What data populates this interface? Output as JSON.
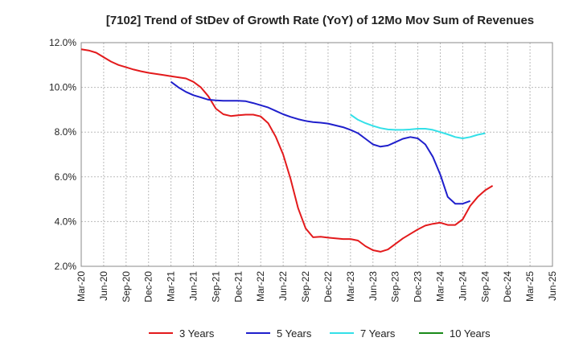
{
  "chart_data": {
    "type": "line",
    "title": "[7102]  Trend of StDev of Growth Rate (YoY) of 12Mo Mov Sum of Revenues",
    "xlabel": "",
    "ylabel": "",
    "ylim": [
      2.0,
      12.0
    ],
    "y_ticks": [
      "2.0%",
      "4.0%",
      "6.0%",
      "8.0%",
      "10.0%",
      "12.0%"
    ],
    "x_ticks": [
      "Mar-20",
      "Jun-20",
      "Sep-20",
      "Dec-20",
      "Mar-21",
      "Jun-21",
      "Sep-21",
      "Dec-21",
      "Mar-22",
      "Jun-22",
      "Sep-22",
      "Dec-22",
      "Mar-23",
      "Jun-23",
      "Sep-23",
      "Dec-23",
      "Mar-24",
      "Jun-24",
      "Sep-24",
      "Dec-24",
      "Mar-25",
      "Jun-25"
    ],
    "grid": true,
    "legend_position": "bottom",
    "series": [
      {
        "name": "3 Years",
        "color": "#e31a1c",
        "start_index": 0,
        "values": [
          11.7,
          11.65,
          11.55,
          11.35,
          11.15,
          11.0,
          10.9,
          10.8,
          10.72,
          10.65,
          10.6,
          10.55,
          10.5,
          10.45,
          10.4,
          10.25,
          10.0,
          9.6,
          9.05,
          8.8,
          8.72,
          8.75,
          8.78,
          8.78,
          8.7,
          8.4,
          7.8,
          7.0,
          5.9,
          4.6,
          3.7,
          3.3,
          3.32,
          3.28,
          3.25,
          3.22,
          3.22,
          3.15,
          2.9,
          2.72,
          2.65,
          2.75,
          3.0,
          3.25,
          3.45,
          3.65,
          3.82,
          3.9,
          3.95,
          3.85,
          3.85,
          4.1,
          4.7,
          5.1,
          5.4,
          5.6
        ]
      },
      {
        "name": "5 Years",
        "color": "#1f1fcc",
        "start_index": 12,
        "values": [
          10.25,
          10.0,
          9.8,
          9.65,
          9.55,
          9.45,
          9.42,
          9.4,
          9.4,
          9.4,
          9.38,
          9.3,
          9.2,
          9.1,
          8.95,
          8.8,
          8.68,
          8.58,
          8.5,
          8.45,
          8.42,
          8.38,
          8.3,
          8.22,
          8.1,
          7.95,
          7.7,
          7.45,
          7.35,
          7.4,
          7.55,
          7.7,
          7.78,
          7.72,
          7.45,
          6.9,
          6.1,
          5.1,
          4.8,
          4.8,
          4.92
        ]
      },
      {
        "name": "7 Years",
        "color": "#33e0e8",
        "start_index": 36,
        "values": [
          8.78,
          8.55,
          8.4,
          8.28,
          8.18,
          8.12,
          8.1,
          8.1,
          8.12,
          8.15,
          8.15,
          8.1,
          8.0,
          7.9,
          7.78,
          7.72,
          7.78,
          7.88,
          7.95
        ]
      },
      {
        "name": "10 Years",
        "color": "#1a8a1a",
        "start_index": 0,
        "values": []
      }
    ]
  }
}
